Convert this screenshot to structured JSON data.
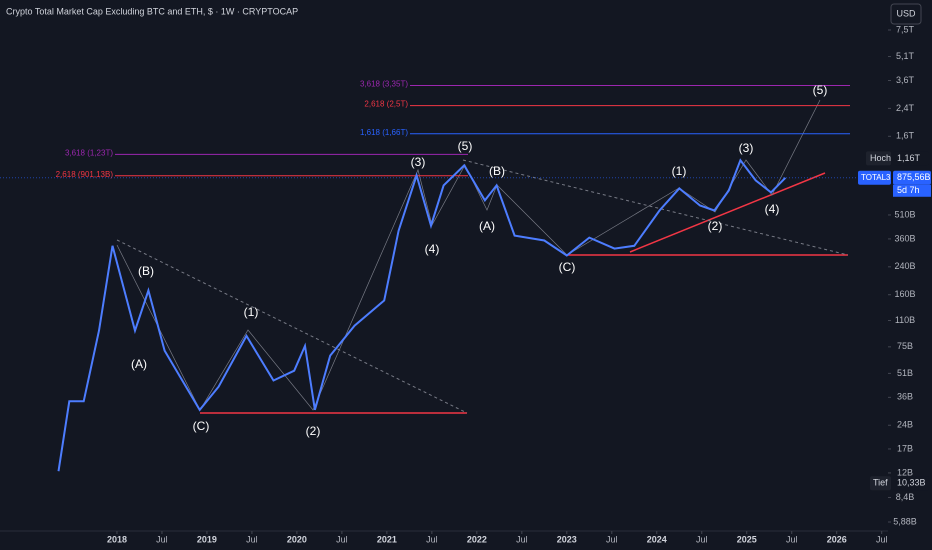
{
  "chart_data": {
    "type": "line",
    "title": "Crypto Total Market Cap Excluding BTC and ETH, $ · 1W · CRYPTOCAP",
    "currency": "USD",
    "log_scale": true,
    "x": [
      2017.35,
      2017.47,
      2017.63,
      2017.8,
      2017.95,
      2018.2,
      2018.35,
      2018.53,
      2018.92,
      2019.13,
      2019.44,
      2019.74,
      2019.97,
      2020.09,
      2020.2,
      2020.37,
      2020.64,
      2020.97,
      2021.13,
      2021.33,
      2021.49,
      2021.63,
      2021.86,
      2022.09,
      2022.22,
      2022.42,
      2022.75,
      2023.0,
      2023.25,
      2023.53,
      2023.75,
      2024.03,
      2024.25,
      2024.48,
      2024.64,
      2024.8,
      2024.93,
      2025.1,
      2025.27,
      2025.43
    ],
    "series": [
      {
        "name": "TOTAL3",
        "color": "#4d7dff",
        "values": [
          12.3,
          34,
          34,
          95,
          326,
          95,
          170,
          71,
          30,
          42,
          88,
          46,
          53,
          76,
          30,
          66,
          102,
          147,
          406,
          906,
          437,
          784,
          1048,
          630,
          784,
          378,
          352,
          283,
          367,
          313,
          326,
          544,
          750,
          585,
          544,
          728,
          1128,
          843,
          708,
          875.56
        ]
      }
    ],
    "last": {
      "value": 875.56,
      "label": "875,56B",
      "countdown": "5d 7h"
    },
    "high": {
      "name": "Hoch",
      "value": 1160,
      "label": "1,16T"
    },
    "low": {
      "name": "Tief",
      "value": 10.33,
      "label": "10,33B"
    },
    "xlim": [
      2016.7,
      2026.57
    ],
    "ylim": [
      5.16,
      11600
    ],
    "xticks": [
      2018,
      {
        "value": 2018.5,
        "label": "Jul"
      },
      2019,
      {
        "value": 2019.5,
        "label": "Jul"
      },
      2020,
      {
        "value": 2020.5,
        "label": "Jul"
      },
      2021,
      {
        "value": 2021.5,
        "label": "Jul"
      },
      2022,
      {
        "value": 2022.5,
        "label": "Jul"
      },
      2023,
      {
        "value": 2023.5,
        "label": "Jul"
      },
      2024,
      {
        "value": 2024.5,
        "label": "Jul"
      },
      2025,
      {
        "value": 2025.5,
        "label": "Jul"
      },
      2026,
      {
        "value": 2026.5,
        "label": "Jul"
      }
    ],
    "yticks": [
      {
        "value": 7500,
        "label": "7,5T"
      },
      {
        "value": 5100,
        "label": "5,1T"
      },
      {
        "value": 3600,
        "label": "3,6T"
      },
      {
        "value": 2400,
        "label": "2,4T"
      },
      {
        "value": 1600,
        "label": "1,6T"
      },
      {
        "value": 510,
        "label": "510B"
      },
      {
        "value": 360,
        "label": "360B"
      },
      {
        "value": 240,
        "label": "240B"
      },
      {
        "value": 160,
        "label": "160B"
      },
      {
        "value": 110,
        "label": "110B"
      },
      {
        "value": 75,
        "label": "75B"
      },
      {
        "value": 51,
        "label": "51B"
      },
      {
        "value": 36,
        "label": "36B"
      },
      {
        "value": 24,
        "label": "24B"
      },
      {
        "value": 17,
        "label": "17B"
      },
      {
        "value": 12,
        "label": "12B"
      },
      {
        "value": 8.4,
        "label": "8,4B"
      },
      {
        "value": 5.88,
        "label": "5,88B"
      }
    ],
    "levels": [
      {
        "value": 3350,
        "label": "3,618 (3,35T)",
        "color": "#9c27b0"
      },
      {
        "value": 2500,
        "label": "2,618 (2,5T)",
        "color": "#f23645"
      },
      {
        "value": 1660,
        "label": "1,618 (1,66T)",
        "color": "#2962ff"
      },
      {
        "value": 1230,
        "label": "3,618 (1,23T)",
        "color": "#9c27b0"
      },
      {
        "value": 901.13,
        "label": "2,618 (901,13B)",
        "color": "#f23645"
      }
    ],
    "annotations": [
      "(B)",
      "(A)",
      "(C)",
      "(1)",
      "(2)",
      "(3)",
      "(5)",
      "(4)",
      "(B)",
      "(A)",
      "(C)",
      "(1)",
      "(2)",
      "(3)",
      "(4)",
      "(5)"
    ]
  }
}
